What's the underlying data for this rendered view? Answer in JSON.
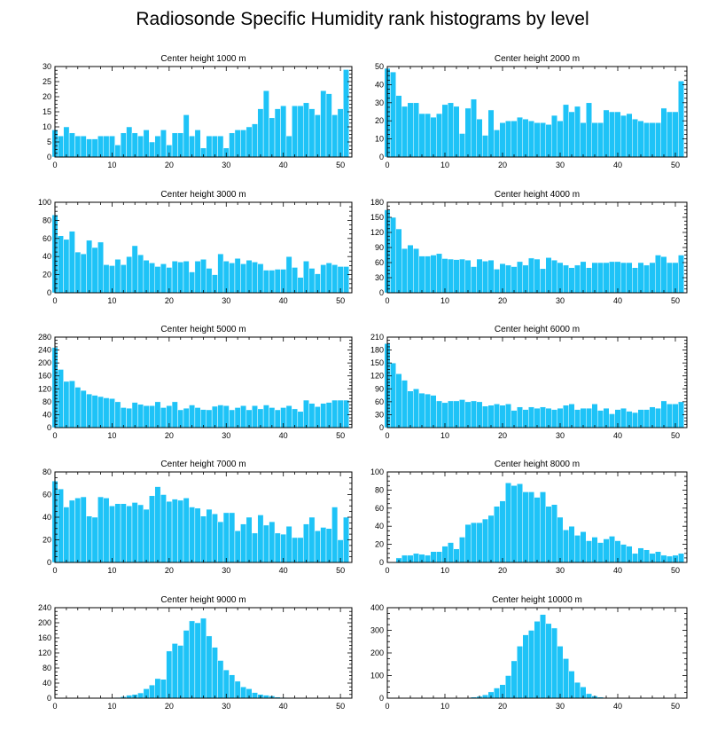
{
  "title": "Radiosonde Specific Humidity rank histograms by level",
  "colors": {
    "bar": "#1ec3f7",
    "axis": "#000000"
  },
  "chart_data": [
    {
      "type": "bar",
      "title": "Center height 1000 m",
      "xlim": [
        0,
        52
      ],
      "ylim": [
        0,
        30
      ],
      "yticks": [
        0,
        5,
        10,
        15,
        20,
        25,
        30
      ],
      "xticks": [
        0,
        10,
        20,
        30,
        40,
        50
      ],
      "x": [
        0,
        1,
        2,
        3,
        4,
        5,
        6,
        7,
        8,
        9,
        10,
        11,
        12,
        13,
        14,
        15,
        16,
        17,
        18,
        19,
        20,
        21,
        22,
        23,
        24,
        25,
        26,
        27,
        28,
        29,
        30,
        31,
        32,
        33,
        34,
        35,
        36,
        37,
        38,
        39,
        40,
        41,
        42,
        43,
        44,
        45,
        46,
        47,
        48,
        49,
        50,
        51
      ],
      "values": [
        9,
        7,
        10,
        8,
        7,
        7,
        6,
        6,
        7,
        7,
        7,
        4,
        8,
        10,
        8,
        7,
        9,
        5,
        7,
        9,
        4,
        8,
        8,
        14,
        7,
        9,
        3,
        7,
        7,
        7,
        3,
        8,
        9,
        9,
        10,
        11,
        16,
        22,
        13,
        16,
        17,
        7,
        17,
        17,
        18,
        16,
        14,
        22,
        21,
        14,
        16,
        29
      ]
    },
    {
      "type": "bar",
      "title": "Center height 2000 m",
      "xlim": [
        0,
        52
      ],
      "ylim": [
        0,
        50
      ],
      "yticks": [
        0,
        10,
        20,
        30,
        40,
        50
      ],
      "xticks": [
        0,
        10,
        20,
        30,
        40,
        50
      ],
      "x": [
        0,
        1,
        2,
        3,
        4,
        5,
        6,
        7,
        8,
        9,
        10,
        11,
        12,
        13,
        14,
        15,
        16,
        17,
        18,
        19,
        20,
        21,
        22,
        23,
        24,
        25,
        26,
        27,
        28,
        29,
        30,
        31,
        32,
        33,
        34,
        35,
        36,
        37,
        38,
        39,
        40,
        41,
        42,
        43,
        44,
        45,
        46,
        47,
        48,
        49,
        50,
        51
      ],
      "values": [
        49,
        47,
        34,
        28,
        30,
        30,
        24,
        24,
        22,
        24,
        29,
        30,
        28,
        13,
        27,
        32,
        21,
        12,
        26,
        15,
        19,
        20,
        20,
        22,
        21,
        20,
        19,
        19,
        18,
        23,
        20,
        29,
        25,
        28,
        19,
        30,
        19,
        19,
        26,
        25,
        25,
        23,
        24,
        21,
        20,
        19,
        19,
        19,
        27,
        25,
        25,
        42
      ]
    },
    {
      "type": "bar",
      "title": "Center height 3000 m",
      "xlim": [
        0,
        52
      ],
      "ylim": [
        0,
        100
      ],
      "yticks": [
        0,
        20,
        40,
        60,
        80,
        100
      ],
      "xticks": [
        0,
        10,
        20,
        30,
        40,
        50
      ],
      "x": [
        0,
        1,
        2,
        3,
        4,
        5,
        6,
        7,
        8,
        9,
        10,
        11,
        12,
        13,
        14,
        15,
        16,
        17,
        18,
        19,
        20,
        21,
        22,
        23,
        24,
        25,
        26,
        27,
        28,
        29,
        30,
        31,
        32,
        33,
        34,
        35,
        36,
        37,
        38,
        39,
        40,
        41,
        42,
        43,
        44,
        45,
        46,
        47,
        48,
        49,
        50,
        51
      ],
      "values": [
        86,
        63,
        59,
        68,
        45,
        43,
        58,
        50,
        56,
        31,
        30,
        37,
        31,
        40,
        52,
        42,
        36,
        33,
        29,
        32,
        28,
        35,
        34,
        35,
        23,
        35,
        37,
        27,
        20,
        43,
        35,
        33,
        38,
        32,
        36,
        34,
        32,
        25,
        25,
        26,
        26,
        40,
        28,
        17,
        35,
        27,
        21,
        31,
        33,
        31,
        29,
        29
      ]
    },
    {
      "type": "bar",
      "title": "Center height 4000 m",
      "xlim": [
        0,
        52
      ],
      "ylim": [
        0,
        180
      ],
      "yticks": [
        0,
        30,
        60,
        90,
        120,
        150,
        180
      ],
      "xticks": [
        0,
        10,
        20,
        30,
        40,
        50
      ],
      "x": [
        0,
        1,
        2,
        3,
        4,
        5,
        6,
        7,
        8,
        9,
        10,
        11,
        12,
        13,
        14,
        15,
        16,
        17,
        18,
        19,
        20,
        21,
        22,
        23,
        24,
        25,
        26,
        27,
        28,
        29,
        30,
        31,
        32,
        33,
        34,
        35,
        36,
        37,
        38,
        39,
        40,
        41,
        42,
        43,
        44,
        45,
        46,
        47,
        48,
        49,
        50,
        51
      ],
      "values": [
        165,
        150,
        127,
        88,
        95,
        88,
        73,
        73,
        75,
        78,
        68,
        67,
        66,
        67,
        65,
        52,
        67,
        63,
        65,
        47,
        58,
        55,
        52,
        62,
        55,
        69,
        67,
        48,
        70,
        65,
        60,
        55,
        50,
        55,
        62,
        50,
        60,
        60,
        60,
        62,
        62,
        60,
        60,
        50,
        60,
        55,
        60,
        75,
        72,
        60,
        60,
        75
      ]
    },
    {
      "type": "bar",
      "title": "Center height 5000 m",
      "xlim": [
        0,
        52
      ],
      "ylim": [
        0,
        280
      ],
      "yticks": [
        0,
        40,
        80,
        120,
        160,
        200,
        240,
        280
      ],
      "xticks": [
        0,
        10,
        20,
        30,
        40,
        50
      ],
      "x": [
        0,
        1,
        2,
        3,
        4,
        5,
        6,
        7,
        8,
        9,
        10,
        11,
        12,
        13,
        14,
        15,
        16,
        17,
        18,
        19,
        20,
        21,
        22,
        23,
        24,
        25,
        26,
        27,
        28,
        29,
        30,
        31,
        32,
        33,
        34,
        35,
        36,
        37,
        38,
        39,
        40,
        41,
        42,
        43,
        44,
        45,
        46,
        47,
        48,
        49,
        50,
        51
      ],
      "values": [
        248,
        180,
        143,
        145,
        125,
        115,
        104,
        100,
        96,
        92,
        90,
        80,
        62,
        60,
        78,
        72,
        68,
        68,
        80,
        62,
        68,
        80,
        55,
        60,
        70,
        62,
        56,
        55,
        66,
        70,
        68,
        55,
        62,
        68,
        55,
        68,
        58,
        70,
        62,
        55,
        62,
        68,
        58,
        50,
        85,
        75,
        65,
        75,
        78,
        85,
        85,
        85
      ]
    },
    {
      "type": "bar",
      "title": "Center height 6000 m",
      "xlim": [
        0,
        52
      ],
      "ylim": [
        0,
        210
      ],
      "yticks": [
        0,
        30,
        60,
        90,
        120,
        150,
        180,
        210
      ],
      "xticks": [
        0,
        10,
        20,
        30,
        40,
        50
      ],
      "x": [
        0,
        1,
        2,
        3,
        4,
        5,
        6,
        7,
        8,
        9,
        10,
        11,
        12,
        13,
        14,
        15,
        16,
        17,
        18,
        19,
        20,
        21,
        22,
        23,
        24,
        25,
        26,
        27,
        28,
        29,
        30,
        31,
        32,
        33,
        34,
        35,
        36,
        37,
        38,
        39,
        40,
        41,
        42,
        43,
        44,
        45,
        46,
        47,
        48,
        49,
        50,
        51
      ],
      "values": [
        195,
        150,
        125,
        110,
        85,
        90,
        80,
        78,
        75,
        62,
        58,
        62,
        62,
        65,
        60,
        62,
        60,
        50,
        52,
        55,
        52,
        55,
        40,
        48,
        42,
        48,
        45,
        48,
        45,
        42,
        45,
        52,
        55,
        42,
        45,
        45,
        55,
        40,
        45,
        32,
        42,
        45,
        38,
        35,
        42,
        42,
        48,
        45,
        62,
        55,
        55,
        60
      ]
    },
    {
      "type": "bar",
      "title": "Center height 7000 m",
      "xlim": [
        0,
        52
      ],
      "ylim": [
        0,
        80
      ],
      "yticks": [
        0,
        20,
        40,
        60,
        80
      ],
      "xticks": [
        0,
        10,
        20,
        30,
        40,
        50
      ],
      "x": [
        0,
        1,
        2,
        3,
        4,
        5,
        6,
        7,
        8,
        9,
        10,
        11,
        12,
        13,
        14,
        15,
        16,
        17,
        18,
        19,
        20,
        21,
        22,
        23,
        24,
        25,
        26,
        27,
        28,
        29,
        30,
        31,
        32,
        33,
        34,
        35,
        36,
        37,
        38,
        39,
        40,
        41,
        42,
        43,
        44,
        45,
        46,
        47,
        48,
        49,
        50,
        51
      ],
      "values": [
        72,
        65,
        49,
        55,
        57,
        58,
        41,
        40,
        58,
        57,
        50,
        52,
        52,
        50,
        53,
        51,
        47,
        59,
        67,
        60,
        54,
        56,
        55,
        57,
        49,
        48,
        41,
        47,
        43,
        36,
        44,
        44,
        28,
        34,
        40,
        26,
        42,
        33,
        36,
        26,
        25,
        32,
        22,
        22,
        34,
        40,
        28,
        31,
        30,
        49,
        20,
        40
      ]
    },
    {
      "type": "bar",
      "title": "Center height 8000 m",
      "xlim": [
        0,
        52
      ],
      "ylim": [
        0,
        100
      ],
      "yticks": [
        0,
        20,
        40,
        60,
        80,
        100
      ],
      "xticks": [
        0,
        10,
        20,
        30,
        40,
        50
      ],
      "x": [
        0,
        1,
        2,
        3,
        4,
        5,
        6,
        7,
        8,
        9,
        10,
        11,
        12,
        13,
        14,
        15,
        16,
        17,
        18,
        19,
        20,
        21,
        22,
        23,
        24,
        25,
        26,
        27,
        28,
        29,
        30,
        31,
        32,
        33,
        34,
        35,
        36,
        37,
        38,
        39,
        40,
        41,
        42,
        43,
        44,
        45,
        46,
        47,
        48,
        49,
        50,
        51
      ],
      "values": [
        0,
        0,
        5,
        8,
        8,
        10,
        9,
        8,
        12,
        12,
        18,
        22,
        15,
        28,
        42,
        44,
        44,
        48,
        52,
        62,
        68,
        88,
        85,
        87,
        78,
        78,
        72,
        78,
        62,
        64,
        50,
        36,
        40,
        30,
        34,
        24,
        28,
        22,
        26,
        29,
        24,
        20,
        18,
        10,
        16,
        14,
        10,
        12,
        8,
        7,
        8,
        10
      ]
    },
    {
      "type": "bar",
      "title": "Center height 9000 m",
      "xlim": [
        0,
        52
      ],
      "ylim": [
        0,
        240
      ],
      "yticks": [
        0,
        40,
        80,
        120,
        160,
        200,
        240
      ],
      "xticks": [
        0,
        10,
        20,
        30,
        40,
        50
      ],
      "x": [
        0,
        1,
        2,
        3,
        4,
        5,
        6,
        7,
        8,
        9,
        10,
        11,
        12,
        13,
        14,
        15,
        16,
        17,
        18,
        19,
        20,
        21,
        22,
        23,
        24,
        25,
        26,
        27,
        28,
        29,
        30,
        31,
        32,
        33,
        34,
        35,
        36,
        37,
        38,
        39,
        40,
        41,
        42,
        43,
        44,
        45,
        46,
        47,
        48,
        49,
        50,
        51
      ],
      "values": [
        0,
        0,
        0,
        0,
        0,
        0,
        0,
        0,
        0,
        0,
        0,
        2,
        4,
        8,
        10,
        14,
        25,
        35,
        52,
        50,
        125,
        145,
        140,
        180,
        205,
        200,
        212,
        165,
        135,
        100,
        75,
        62,
        45,
        30,
        25,
        15,
        10,
        8,
        6,
        3,
        2,
        1,
        1,
        0,
        0,
        0,
        0,
        0,
        0,
        0,
        0,
        0
      ]
    },
    {
      "type": "bar",
      "title": "Center height 10000 m",
      "xlim": [
        0,
        52
      ],
      "ylim": [
        0,
        400
      ],
      "yticks": [
        0,
        100,
        200,
        300,
        400
      ],
      "xticks": [
        0,
        10,
        20,
        30,
        40,
        50
      ],
      "x": [
        0,
        1,
        2,
        3,
        4,
        5,
        6,
        7,
        8,
        9,
        10,
        11,
        12,
        13,
        14,
        15,
        16,
        17,
        18,
        19,
        20,
        21,
        22,
        23,
        24,
        25,
        26,
        27,
        28,
        29,
        30,
        31,
        32,
        33,
        34,
        35,
        36,
        37,
        38,
        39,
        40,
        41,
        42,
        43,
        44,
        45,
        46,
        47,
        48,
        49,
        50,
        51
      ],
      "values": [
        0,
        0,
        0,
        0,
        0,
        0,
        0,
        0,
        0,
        0,
        0,
        0,
        0,
        0,
        0,
        5,
        8,
        15,
        28,
        45,
        60,
        100,
        165,
        230,
        280,
        300,
        340,
        370,
        330,
        310,
        230,
        175,
        120,
        70,
        50,
        20,
        10,
        5,
        3,
        2,
        1,
        0,
        0,
        0,
        0,
        0,
        0,
        0,
        0,
        0,
        0,
        0
      ]
    }
  ]
}
